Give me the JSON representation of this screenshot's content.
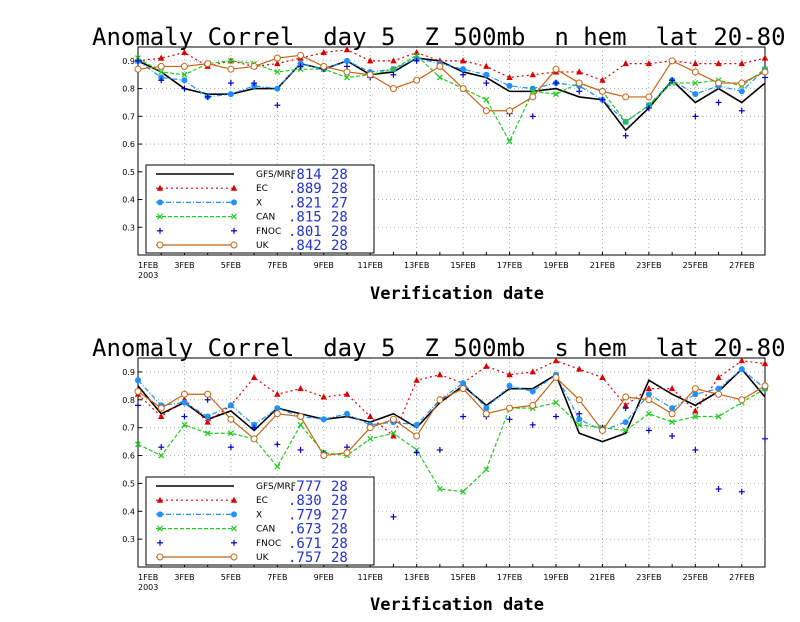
{
  "chart_data": [
    {
      "type": "line",
      "title": "Anomaly Correl  day 5  Z 500mb  n hem  lat 20-80",
      "xlabel": "Verification date",
      "ylabel": "",
      "x": [
        1,
        2,
        3,
        4,
        5,
        6,
        7,
        8,
        9,
        10,
        11,
        12,
        13,
        14,
        15,
        16,
        17,
        18,
        19,
        20,
        21,
        22,
        23,
        24,
        25,
        26,
        27,
        28
      ],
      "x_tick_labels": [
        "1FEB",
        "3FEB",
        "5FEB",
        "7FEB",
        "9FEB",
        "11FEB",
        "13FEB",
        "15FEB",
        "17FEB",
        "19FEB",
        "21FEB",
        "23FEB",
        "25FEB",
        "27FEB"
      ],
      "x_year_label": "2003",
      "xlim": [
        1,
        28
      ],
      "ylim": [
        0.2,
        0.95
      ],
      "y_ticks": [
        0.3,
        0.4,
        0.5,
        0.6,
        0.7,
        0.8,
        0.9
      ],
      "y_tick_labels": [
        "0.3",
        "0.4",
        "0.5",
        "0.6",
        "0.7",
        "0.8",
        "0.9"
      ],
      "grid": true,
      "legend_placement": "lower-left",
      "series": [
        {
          "name": "GFS/MRF",
          "mean": ".814",
          "count": "28",
          "color": "#000000",
          "dash": "",
          "marker": "none",
          "values": [
            0.9,
            0.86,
            0.8,
            0.78,
            0.78,
            0.8,
            0.8,
            0.89,
            0.87,
            0.9,
            0.85,
            0.86,
            0.91,
            0.9,
            0.86,
            0.84,
            0.79,
            0.79,
            0.8,
            0.77,
            0.76,
            0.65,
            0.73,
            0.83,
            0.75,
            0.8,
            0.75,
            0.82
          ]
        },
        {
          "name": "EC",
          "mean": ".889",
          "count": "28",
          "color": "#dd0000",
          "dash": "2,3",
          "marker": "triangle",
          "values": [
            0.9,
            0.91,
            0.93,
            0.88,
            0.9,
            0.88,
            0.89,
            0.91,
            0.93,
            0.94,
            0.9,
            0.9,
            0.93,
            0.9,
            0.9,
            0.88,
            0.84,
            0.85,
            0.86,
            0.86,
            0.83,
            0.89,
            0.89,
            0.9,
            0.89,
            0.89,
            0.89,
            0.91
          ]
        },
        {
          "name": "X",
          "mean": ".821",
          "count": "27",
          "color": "#1e90ff",
          "dash": "5,2,1,2",
          "marker": "circle",
          "values": [
            0.9,
            0.84,
            0.83,
            0.77,
            0.78,
            0.81,
            0.8,
            0.89,
            0.87,
            0.9,
            0.86,
            0.87,
            0.91,
            0.89,
            0.87,
            0.85,
            0.81,
            0.8,
            0.82,
            0.81,
            0.76,
            0.68,
            0.74,
            0.83,
            0.78,
            0.81,
            0.79,
            0.87
          ]
        },
        {
          "name": "CAN",
          "mean": ".815",
          "count": "28",
          "color": "#22cc22",
          "dash": "4,2",
          "marker": "x",
          "values": [
            0.91,
            0.86,
            0.85,
            0.89,
            0.9,
            0.89,
            0.86,
            0.87,
            0.87,
            0.84,
            0.85,
            0.87,
            0.92,
            0.84,
            0.8,
            0.76,
            0.61,
            0.79,
            0.78,
            0.82,
            0.79,
            0.68,
            0.74,
            0.82,
            0.82,
            0.83,
            0.81,
            0.87
          ]
        },
        {
          "name": "FNOC",
          "mean": ".801",
          "count": "28",
          "color": "#0000cc",
          "dash": "none",
          "marker": "plus",
          "values": [
            0.9,
            0.83,
            0.8,
            0.77,
            0.82,
            0.82,
            0.74,
            0.88,
            0.87,
            0.88,
            0.84,
            0.85,
            0.9,
            0.88,
            0.85,
            0.82,
            0.71,
            0.7,
            0.82,
            0.79,
            0.76,
            0.63,
            0.73,
            0.83,
            0.7,
            0.75,
            0.72,
            0.84
          ]
        },
        {
          "name": "UK",
          "mean": ".842",
          "count": "28",
          "color": "#c86414",
          "dash": "",
          "marker": "diamond",
          "values": [
            0.87,
            0.88,
            0.88,
            0.89,
            0.87,
            0.88,
            0.91,
            0.92,
            0.88,
            0.86,
            0.85,
            0.8,
            0.83,
            0.88,
            0.8,
            0.72,
            0.72,
            0.77,
            0.87,
            0.82,
            0.79,
            0.77,
            0.77,
            0.9,
            0.86,
            0.82,
            0.82,
            0.86
          ]
        }
      ]
    },
    {
      "type": "line",
      "title": "Anomaly Correl  day 5  Z 500mb  s hem  lat 20-80",
      "xlabel": "Verification date",
      "ylabel": "",
      "x": [
        1,
        2,
        3,
        4,
        5,
        6,
        7,
        8,
        9,
        10,
        11,
        12,
        13,
        14,
        15,
        16,
        17,
        18,
        19,
        20,
        21,
        22,
        23,
        24,
        25,
        26,
        27,
        28
      ],
      "x_tick_labels": [
        "1FEB",
        "3FEB",
        "5FEB",
        "7FEB",
        "9FEB",
        "11FEB",
        "13FEB",
        "15FEB",
        "17FEB",
        "19FEB",
        "21FEB",
        "23FEB",
        "25FEB",
        "27FEB"
      ],
      "x_year_label": "2003",
      "xlim": [
        1,
        28
      ],
      "ylim": [
        0.2,
        0.95
      ],
      "y_ticks": [
        0.3,
        0.4,
        0.5,
        0.6,
        0.7,
        0.8,
        0.9
      ],
      "y_tick_labels": [
        "0.3",
        "0.4",
        "0.5",
        "0.6",
        "0.7",
        "0.8",
        "0.9"
      ],
      "grid": true,
      "legend_placement": "lower-left",
      "series": [
        {
          "name": "GFS/MRF",
          "mean": ".777",
          "count": "28",
          "color": "#000000",
          "dash": "",
          "marker": "none",
          "values": [
            0.85,
            0.75,
            0.79,
            0.73,
            0.76,
            0.69,
            0.77,
            0.75,
            0.73,
            0.74,
            0.72,
            0.75,
            0.7,
            0.79,
            0.85,
            0.78,
            0.84,
            0.84,
            0.89,
            0.68,
            0.65,
            0.68,
            0.87,
            0.82,
            0.78,
            0.83,
            0.91,
            0.81
          ]
        },
        {
          "name": "EC",
          "mean": ".830",
          "count": "28",
          "color": "#dd0000",
          "dash": "2,3",
          "marker": "triangle",
          "values": [
            0.82,
            0.74,
            0.8,
            0.72,
            0.78,
            0.88,
            0.82,
            0.84,
            0.81,
            0.82,
            0.74,
            0.67,
            0.87,
            0.89,
            0.86,
            0.92,
            0.89,
            0.9,
            0.94,
            0.91,
            0.88,
            0.78,
            0.84,
            0.84,
            0.76,
            0.88,
            0.94,
            0.93
          ]
        },
        {
          "name": "X",
          "mean": ".779",
          "count": "27",
          "color": "#1e90ff",
          "dash": "5,2,1,2",
          "marker": "circle",
          "values": [
            0.87,
            0.78,
            0.79,
            0.74,
            0.78,
            0.71,
            0.77,
            0.74,
            0.73,
            0.75,
            0.71,
            0.72,
            0.71,
            0.8,
            0.86,
            0.77,
            0.85,
            0.83,
            0.89,
            0.73,
            0.69,
            0.72,
            0.82,
            0.77,
            0.82,
            0.84,
            0.91,
            0.84
          ]
        },
        {
          "name": "CAN",
          "mean": ".673",
          "count": "28",
          "color": "#22cc22",
          "dash": "4,2",
          "marker": "x",
          "values": [
            0.64,
            0.6,
            0.71,
            0.68,
            0.68,
            0.66,
            0.56,
            0.71,
            0.61,
            0.6,
            0.66,
            0.68,
            0.62,
            0.48,
            0.47,
            0.55,
            0.77,
            0.77,
            0.79,
            0.71,
            0.7,
            0.69,
            0.75,
            0.72,
            0.74,
            0.74,
            0.79,
            0.84
          ]
        },
        {
          "name": "FNOC",
          "mean": ".671",
          "count": "28",
          "color": "#0000cc",
          "dash": "none",
          "marker": "plus",
          "values": [
            0.78,
            0.63,
            0.74,
            0.8,
            0.63,
            0.7,
            0.64,
            0.62,
            0.61,
            0.63,
            0.38,
            0.38,
            0.61,
            0.62,
            0.74,
            0.74,
            0.73,
            0.71,
            0.74,
            0.75,
            0.7,
            0.77,
            0.69,
            0.67,
            0.62,
            0.48,
            0.47,
            0.66
          ]
        },
        {
          "name": "UK",
          "mean": ".757",
          "count": "28",
          "color": "#c86414",
          "dash": "",
          "marker": "diamond",
          "values": [
            0.83,
            0.77,
            0.82,
            0.82,
            0.73,
            0.66,
            0.75,
            0.74,
            0.6,
            0.61,
            0.7,
            0.73,
            0.67,
            0.8,
            0.84,
            0.75,
            0.77,
            0.78,
            0.88,
            0.8,
            0.69,
            0.81,
            0.8,
            0.75,
            0.84,
            0.82,
            0.8,
            0.85
          ]
        }
      ]
    }
  ]
}
